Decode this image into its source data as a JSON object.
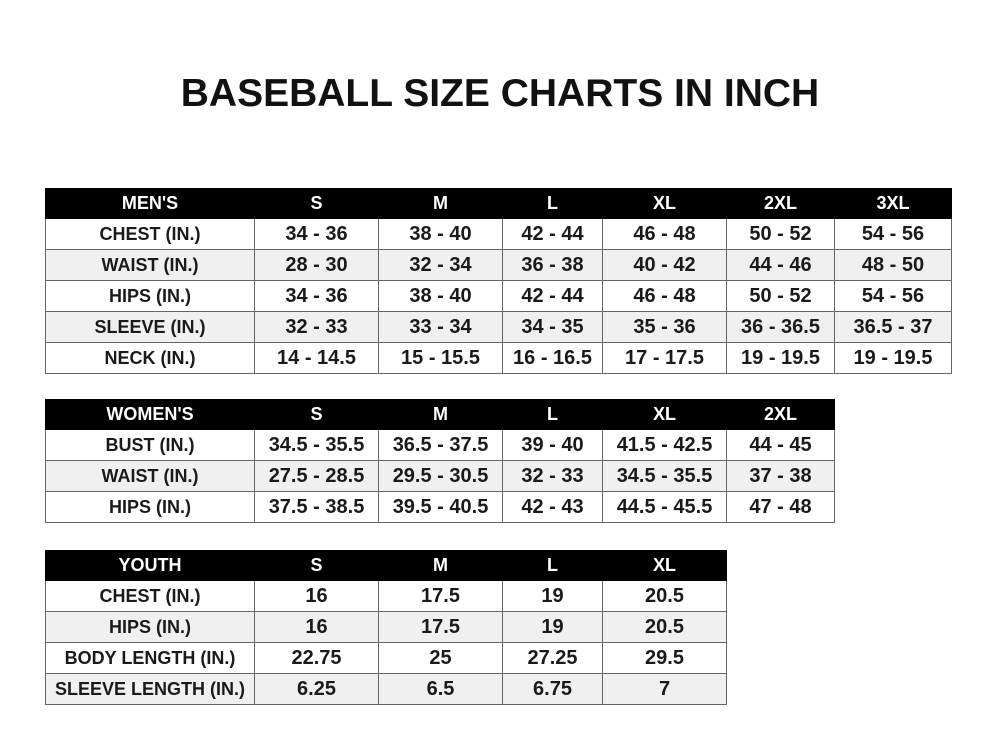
{
  "title": "BASEBALL SIZE CHARTS IN INCH",
  "men": {
    "headers": [
      "MEN'S",
      "S",
      "M",
      "L",
      "XL",
      "2XL",
      "3XL"
    ],
    "rows": [
      [
        "CHEST (IN.)",
        "34 - 36",
        "38 - 40",
        "42 - 44",
        "46 - 48",
        "50 - 52",
        "54 - 56"
      ],
      [
        "WAIST (IN.)",
        "28 - 30",
        "32 - 34",
        "36 - 38",
        "40 - 42",
        "44 - 46",
        "48 - 50"
      ],
      [
        "HIPS (IN.)",
        "34 - 36",
        "38 - 40",
        "42 - 44",
        "46 - 48",
        "50 - 52",
        "54 - 56"
      ],
      [
        "SLEEVE (IN.)",
        "32 - 33",
        "33 - 34",
        "34 - 35",
        "35 - 36",
        "36 - 36.5",
        "36.5 - 37"
      ],
      [
        "NECK (IN.)",
        "14 - 14.5",
        "15 - 15.5",
        "16 - 16.5",
        "17 - 17.5",
        "19 - 19.5",
        "19 - 19.5"
      ]
    ]
  },
  "women": {
    "headers": [
      "WOMEN'S",
      "S",
      "M",
      "L",
      "XL",
      "2XL"
    ],
    "rows": [
      [
        "BUST (IN.)",
        "34.5 - 35.5",
        "36.5 - 37.5",
        "39 - 40",
        "41.5 - 42.5",
        "44 - 45"
      ],
      [
        "WAIST (IN.)",
        "27.5 - 28.5",
        "29.5 - 30.5",
        "32 - 33",
        "34.5 - 35.5",
        "37 - 38"
      ],
      [
        "HIPS (IN.)",
        "37.5 - 38.5",
        "39.5 - 40.5",
        "42 - 43",
        "44.5 - 45.5",
        "47 - 48"
      ]
    ]
  },
  "youth": {
    "headers": [
      "YOUTH",
      "S",
      "M",
      "L",
      "XL"
    ],
    "rows": [
      [
        "CHEST (IN.)",
        "16",
        "17.5",
        "19",
        "20.5"
      ],
      [
        "HIPS (IN.)",
        "16",
        "17.5",
        "19",
        "20.5"
      ],
      [
        "BODY LENGTH (IN.)",
        "22.75",
        "25",
        "27.25",
        "29.5"
      ],
      [
        "SLEEVE LENGTH (IN.)",
        "6.25",
        "6.5",
        "6.75",
        "7"
      ]
    ]
  }
}
